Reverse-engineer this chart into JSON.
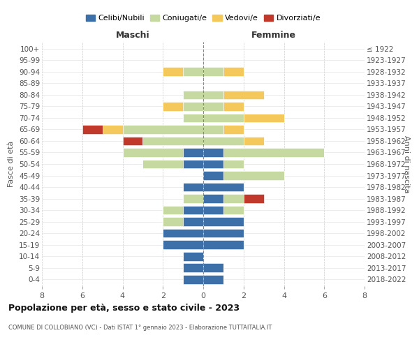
{
  "age_groups_display": [
    "100+",
    "95-99",
    "90-94",
    "85-89",
    "80-84",
    "75-79",
    "70-74",
    "65-69",
    "60-64",
    "55-59",
    "50-54",
    "45-49",
    "40-44",
    "35-39",
    "30-34",
    "25-29",
    "20-24",
    "15-19",
    "10-14",
    "5-9",
    "0-4"
  ],
  "birth_years_display": [
    "≤ 1922",
    "1923-1927",
    "1928-1932",
    "1933-1937",
    "1938-1942",
    "1943-1947",
    "1948-1952",
    "1953-1957",
    "1958-1962",
    "1963-1967",
    "1968-1972",
    "1973-1977",
    "1978-1982",
    "1983-1987",
    "1988-1992",
    "1993-1997",
    "1998-2002",
    "2003-2007",
    "2008-2012",
    "2013-2017",
    "2018-2022"
  ],
  "maschi": {
    "celibi": [
      0,
      0,
      0,
      0,
      0,
      0,
      0,
      0,
      0,
      1,
      1,
      0,
      1,
      0,
      1,
      1,
      2,
      2,
      1,
      1,
      1
    ],
    "coniugati": [
      0,
      0,
      1,
      0,
      1,
      1,
      1,
      4,
      3,
      3,
      2,
      0,
      0,
      1,
      1,
      1,
      0,
      0,
      0,
      0,
      0
    ],
    "vedovi": [
      0,
      0,
      1,
      0,
      0,
      1,
      0,
      1,
      0,
      0,
      0,
      0,
      0,
      0,
      0,
      0,
      0,
      0,
      0,
      0,
      0
    ],
    "divorziati": [
      0,
      0,
      0,
      0,
      0,
      0,
      0,
      1,
      1,
      0,
      0,
      0,
      0,
      0,
      0,
      0,
      0,
      0,
      0,
      0,
      0
    ]
  },
  "femmine": {
    "nubili": [
      0,
      0,
      0,
      0,
      0,
      0,
      0,
      0,
      0,
      1,
      1,
      1,
      2,
      1,
      1,
      2,
      2,
      2,
      0,
      1,
      1
    ],
    "coniugate": [
      0,
      0,
      1,
      0,
      1,
      1,
      2,
      1,
      2,
      5,
      1,
      3,
      0,
      1,
      1,
      0,
      0,
      0,
      0,
      0,
      0
    ],
    "vedove": [
      0,
      0,
      1,
      0,
      2,
      1,
      2,
      1,
      1,
      0,
      0,
      0,
      0,
      0,
      0,
      0,
      0,
      0,
      0,
      0,
      0
    ],
    "divorziate": [
      0,
      0,
      0,
      0,
      0,
      0,
      0,
      0,
      0,
      0,
      0,
      0,
      0,
      1,
      0,
      0,
      0,
      0,
      0,
      0,
      0
    ]
  },
  "colors": {
    "celibi": "#3d6fa8",
    "coniugati": "#c5d9a0",
    "vedovi": "#f5c85c",
    "divorziati": "#c0392b"
  },
  "xlim": 8,
  "title": "Popolazione per età, sesso e stato civile - 2023",
  "subtitle": "COMUNE DI COLLOBIANO (VC) - Dati ISTAT 1° gennaio 2023 - Elaborazione TUTTAITALIA.IT",
  "ylabel_left": "Fasce di età",
  "ylabel_right": "Anni di nascita",
  "xlabel_left": "Maschi",
  "xlabel_right": "Femmine"
}
